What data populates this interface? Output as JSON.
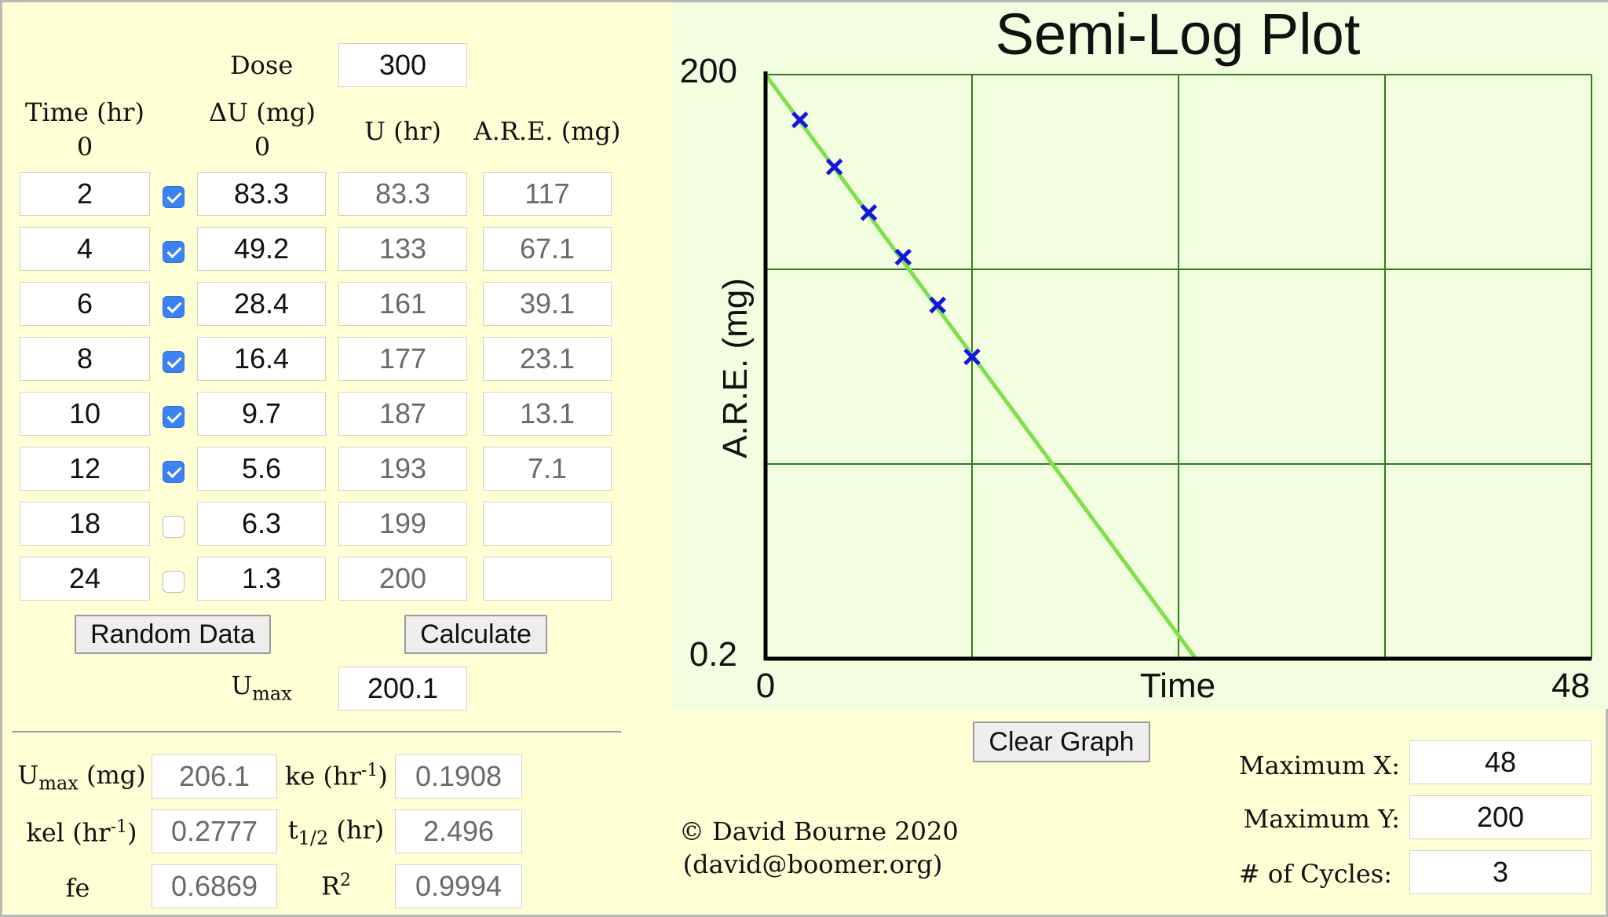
{
  "table": {
    "dose_label": "Dose",
    "dose_value": "300",
    "time_header": "Time (hr)",
    "time_zero": "0",
    "du_header": "ΔU (mg)",
    "du_zero": "0",
    "u_header": "U (hr)",
    "are_header": "A.R.E. (mg)",
    "rows": [
      {
        "time": "2",
        "checked": true,
        "du": "83.3",
        "u": "83.3",
        "are": "117"
      },
      {
        "time": "4",
        "checked": true,
        "du": "49.2",
        "u": "133",
        "are": "67.1"
      },
      {
        "time": "6",
        "checked": true,
        "du": "28.4",
        "u": "161",
        "are": "39.1"
      },
      {
        "time": "8",
        "checked": true,
        "du": "16.4",
        "u": "177",
        "are": "23.1"
      },
      {
        "time": "10",
        "checked": true,
        "du": "9.7",
        "u": "187",
        "are": "13.1"
      },
      {
        "time": "12",
        "checked": true,
        "du": "5.6",
        "u": "193",
        "are": "7.1"
      },
      {
        "time": "18",
        "checked": false,
        "du": "6.3",
        "u": "199",
        "are": ""
      },
      {
        "time": "24",
        "checked": false,
        "du": "1.3",
        "u": "200",
        "are": ""
      }
    ]
  },
  "buttons": {
    "random_data": "Random Data",
    "calculate": "Calculate",
    "clear_graph": "Clear Graph"
  },
  "umax_row": {
    "label_main": "U",
    "label_sub": "max",
    "value": "200.1"
  },
  "results": {
    "umax_label_main": "U",
    "umax_label_sub": "max",
    "umax_label_tail": " (mg)",
    "umax_value": "206.1",
    "ke_label_main": "ke (hr",
    "ke_label_sup": "-1",
    "ke_label_tail": ")",
    "ke_value": "0.1908",
    "kel_label_main": "kel (hr",
    "kel_label_sup": "-1",
    "kel_label_tail": ")",
    "kel_value": "0.2777",
    "thalf_label_main": "t",
    "thalf_label_sub": "1/2",
    "thalf_label_tail": " (hr)",
    "thalf_value": "2.496",
    "fe_label": "fe",
    "fe_value": "0.6869",
    "r2_label_main": "R",
    "r2_label_sup": "2",
    "r2_value": "0.9994"
  },
  "credits": {
    "line1": "© David Bourne 2020",
    "line2": "(david@boomer.org)"
  },
  "settings": {
    "max_x_label": "Maximum X:",
    "max_x_value": "48",
    "max_y_label": "Maximum Y:",
    "max_y_value": "200",
    "cycles_label": "# of Cycles:",
    "cycles_value": "3"
  },
  "colors": {
    "panel_bg": "#ffffd6",
    "plot_bg": "#f3fde0",
    "grid": "#2e7d1e",
    "fit_line": "#7ee04a",
    "marker": "#1515e0"
  },
  "chart_data": {
    "type": "scatter",
    "title": "Semi-Log Plot",
    "xlabel": "Time",
    "ylabel": "A.R.E. (mg)",
    "xlim": [
      0,
      48
    ],
    "ylim": [
      0.2,
      200
    ],
    "y_scale": "log",
    "x_tick_labels": [
      "0",
      "48"
    ],
    "y_tick_labels": [
      "0.2",
      "200"
    ],
    "grid": true,
    "points": [
      {
        "x": 2,
        "y": 117
      },
      {
        "x": 4,
        "y": 67.1
      },
      {
        "x": 6,
        "y": 39.1
      },
      {
        "x": 8,
        "y": 23.1
      },
      {
        "x": 10,
        "y": 13.1
      },
      {
        "x": 12,
        "y": 7.1
      }
    ],
    "fit_line": [
      {
        "x": 0,
        "y": 200
      },
      {
        "x": 25,
        "y": 0.2
      }
    ]
  }
}
